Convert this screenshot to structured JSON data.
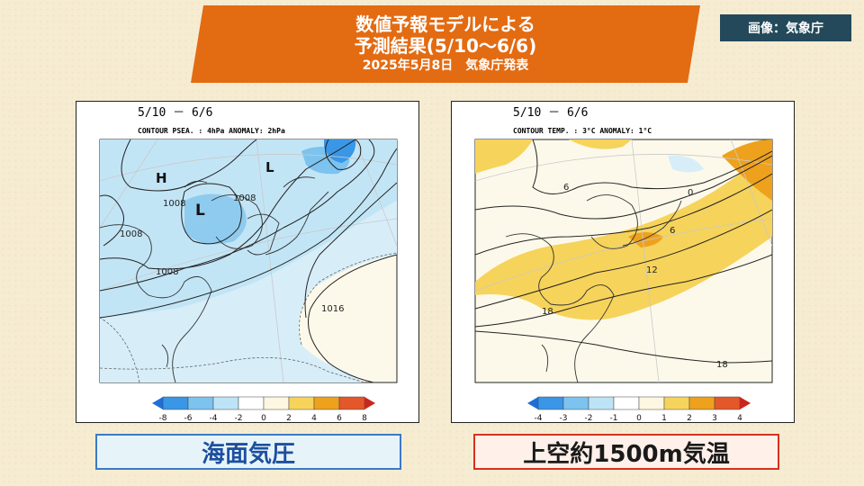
{
  "title": {
    "line1": "数値予報モデルによる",
    "line2": "予測結果(5/10～6/6)",
    "line3": "2025年5月8日　気象庁発表"
  },
  "credit": "画像：気象庁",
  "colors": {
    "banner": "#e36b12",
    "credit_bg": "#23495a",
    "left_label_border": "#3b7ac4",
    "right_label_border": "#d6311f"
  },
  "left_map": {
    "period": "5/10 － 6/6",
    "contour_info": "CONTOUR PSEA. :  4hPa    ANOMALY:  2hPa",
    "labels": {
      "h": "H",
      "l1": "L",
      "l2": "L",
      "c1008a": "1008",
      "c1008b": "1008",
      "c1008c": "1008",
      "c1008d": "1008",
      "c1016": "1016"
    },
    "legend": {
      "ticks": [
        "-8",
        "-6",
        "-4",
        "-2",
        "0",
        "2",
        "4",
        "6",
        "8"
      ],
      "colors": [
        "#1e6fd9",
        "#3a96e6",
        "#7cc3ef",
        "#bde3f7",
        "#ffffff",
        "#fdf7e1",
        "#f6d35b",
        "#eea11d",
        "#e4572a",
        "#c8271c"
      ]
    },
    "label": "海面気圧"
  },
  "right_map": {
    "period": "5/10 － 6/6",
    "contour_info": "CONTOUR TEMP. :  3°C    ANOMALY:  1°C",
    "labels": {
      "c6a": "6",
      "c0": "0",
      "c6b": "6",
      "c12": "12",
      "c18a": "18",
      "c18b": "18"
    },
    "legend": {
      "ticks": [
        "-4",
        "-3",
        "-2",
        "-1",
        "0",
        "1",
        "2",
        "3",
        "4"
      ],
      "colors": [
        "#1e6fd9",
        "#3a96e6",
        "#7cc3ef",
        "#bde3f7",
        "#ffffff",
        "#fdf7e1",
        "#f6d35b",
        "#eea11d",
        "#e4572a",
        "#c8271c"
      ]
    },
    "label": "上空約1500m気温"
  }
}
